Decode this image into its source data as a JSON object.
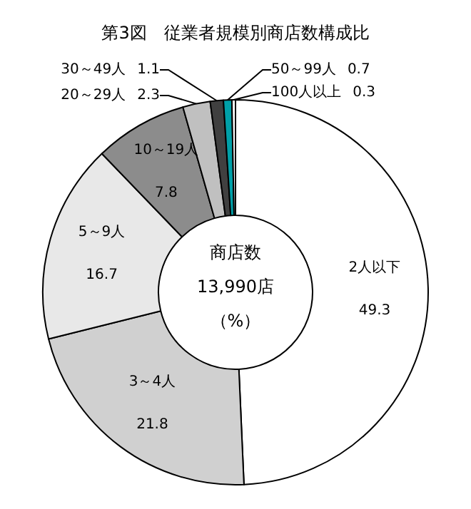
{
  "chart_data": {
    "type": "donut",
    "title": "第3図　従業者規模別商店数構成比",
    "categories": [
      "2人以下",
      "3～4人",
      "5～9人",
      "10～19人",
      "20～29人",
      "30～49人",
      "50～99人",
      "100人以上"
    ],
    "values": [
      49.3,
      21.8,
      16.7,
      7.8,
      2.3,
      1.1,
      0.7,
      0.3
    ],
    "colors": [
      "#ffffff",
      "#d0d0d0",
      "#e8e8e8",
      "#8c8c8c",
      "#c0c0c0",
      "#404040",
      "#00a0a8",
      "#ffffff"
    ],
    "annotations": [
      "商店数",
      "13,990店",
      "（%）"
    ],
    "data_labels": true,
    "legend": false
  }
}
